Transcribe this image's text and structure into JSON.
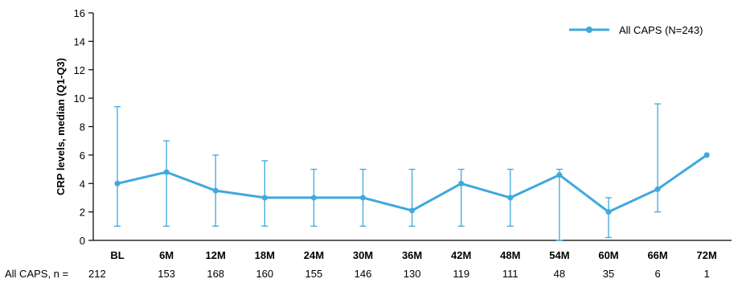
{
  "chart_data": {
    "type": "line",
    "title": "",
    "xlabel": "",
    "ylabel": "CRP levels, median (Q1-Q3)",
    "ylim": [
      0,
      16
    ],
    "yticks": [
      0,
      2,
      4,
      6,
      8,
      10,
      12,
      14,
      16
    ],
    "categories": [
      "BL",
      "6M",
      "12M",
      "18M",
      "24M",
      "30M",
      "36M",
      "42M",
      "48M",
      "54M",
      "60M",
      "66M",
      "72M"
    ],
    "legend_position": "top-right",
    "grid": false,
    "series": [
      {
        "name": "All CAPS (N=243)",
        "color": "#3fa9dc",
        "values": [
          4.0,
          4.8,
          3.5,
          3.0,
          3.0,
          3.0,
          2.1,
          4.0,
          3.0,
          4.6,
          2.0,
          3.6,
          6.0
        ],
        "q1": [
          1.0,
          1.0,
          1.0,
          1.0,
          1.0,
          1.0,
          1.0,
          1.0,
          1.0,
          0.0,
          0.2,
          2.0,
          null
        ],
        "q3": [
          9.4,
          7.0,
          6.0,
          5.6,
          5.0,
          5.0,
          5.0,
          5.0,
          5.0,
          5.0,
          3.0,
          9.6,
          null
        ]
      }
    ],
    "n_row": {
      "label": "All CAPS, n =",
      "values": [
        "212",
        "153",
        "168",
        "160",
        "155",
        "146",
        "130",
        "119",
        "111",
        "48",
        "35",
        "6",
        "1"
      ]
    }
  }
}
